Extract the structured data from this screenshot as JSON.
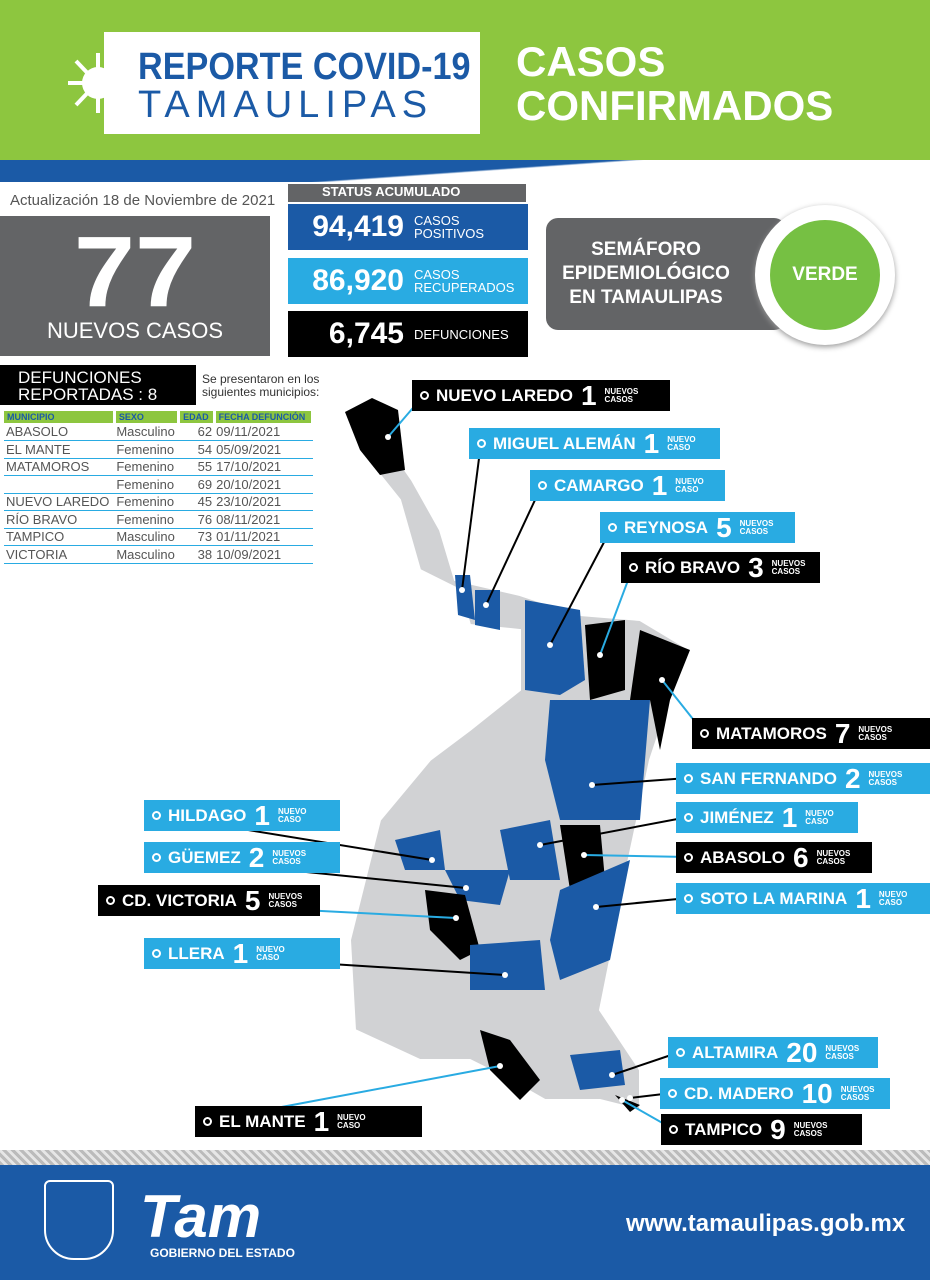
{
  "header": {
    "title_line1": "REPORTE COVID-19",
    "title_line2": "TAMAULIPAS",
    "section_line1": "CASOS",
    "section_line2": "CONFIRMADOS"
  },
  "update": "Actualización 18 de Noviembre de 2021",
  "new_cases": {
    "value": "77",
    "label": "NUEVOS CASOS"
  },
  "status": {
    "title": "STATUS ACUMULADO",
    "items": [
      {
        "value": "94,419",
        "label1": "CASOS",
        "label2": "POSITIVOS",
        "color": "#1b5aa6"
      },
      {
        "value": "86,920",
        "label1": "CASOS",
        "label2": "RECUPERADOS",
        "color": "#29abe2"
      },
      {
        "value": "6,745",
        "label1": "DEFUNCIONES",
        "label2": "",
        "color": "#000000"
      }
    ]
  },
  "semaforo": {
    "line1": "SEMÁFORO",
    "line2": "EPIDEMIOLÓGICO",
    "line3": "EN TAMAULIPAS",
    "value": "VERDE",
    "color": "#76c043"
  },
  "deaths": {
    "title1": "DEFUNCIONES",
    "title2": "REPORTADAS : 8",
    "note1": "Se presentaron en los",
    "note2": "siguientes municipios:",
    "columns": [
      "MUNICIPIO",
      "SEXO",
      "EDAD",
      "FECHA DEFUNCIÓN"
    ],
    "rows": [
      [
        "ABASOLO",
        "Masculino",
        "62",
        "09/11/2021"
      ],
      [
        "EL MANTE",
        "Femenino",
        "54",
        "05/09/2021"
      ],
      [
        "MATAMOROS",
        "Femenino",
        "55",
        "17/10/2021"
      ],
      [
        "",
        "Femenino",
        "69",
        "20/10/2021"
      ],
      [
        "NUEVO LAREDO",
        "Femenino",
        "45",
        "23/10/2021"
      ],
      [
        "RÍO BRAVO",
        "Femenino",
        "76",
        "08/11/2021"
      ],
      [
        "TAMPICO",
        "Masculino",
        "73",
        "01/11/2021"
      ],
      [
        "VICTORIA",
        "Masculino",
        "38",
        "10/09/2021"
      ]
    ]
  },
  "municipalities": [
    {
      "name": "NUEVO LAREDO",
      "count": "1",
      "suffix1": "NUEVOS",
      "suffix2": "CASOS",
      "style": "black"
    },
    {
      "name": "MIGUEL ALEMÁN",
      "count": "1",
      "suffix1": "NUEVO",
      "suffix2": "CASO",
      "style": "cyan"
    },
    {
      "name": "CAMARGO",
      "count": "1",
      "suffix1": "NUEVO",
      "suffix2": "CASO",
      "style": "cyan"
    },
    {
      "name": "REYNOSA",
      "count": "5",
      "suffix1": "NUEVOS",
      "suffix2": "CASOS",
      "style": "cyan"
    },
    {
      "name": "RÍO BRAVO",
      "count": "3",
      "suffix1": "NUEVOS",
      "suffix2": "CASOS",
      "style": "black"
    },
    {
      "name": "MATAMOROS",
      "count": "7",
      "suffix1": "NUEVOS",
      "suffix2": "CASOS",
      "style": "black"
    },
    {
      "name": "SAN FERNANDO",
      "count": "2",
      "suffix1": "NUEVOS",
      "suffix2": "CASOS",
      "style": "cyan"
    },
    {
      "name": "JIMÉNEZ",
      "count": "1",
      "suffix1": "NUEVO",
      "suffix2": "CASO",
      "style": "cyan"
    },
    {
      "name": "ABASOLO",
      "count": "6",
      "suffix1": "NUEVOS",
      "suffix2": "CASOS",
      "style": "black"
    },
    {
      "name": "SOTO LA MARINA",
      "count": "1",
      "suffix1": "NUEVO",
      "suffix2": "CASO",
      "style": "cyan"
    },
    {
      "name": "HILDAGO",
      "count": "1",
      "suffix1": "NUEVO",
      "suffix2": "CASO",
      "style": "cyan"
    },
    {
      "name": "GÜEMEZ",
      "count": "2",
      "suffix1": "NUEVOS",
      "suffix2": "CASOS",
      "style": "cyan"
    },
    {
      "name": "CD. VICTORIA",
      "count": "5",
      "suffix1": "NUEVOS",
      "suffix2": "CASOS",
      "style": "black"
    },
    {
      "name": "LLERA",
      "count": "1",
      "suffix1": "NUEVO",
      "suffix2": "CASO",
      "style": "cyan"
    },
    {
      "name": "ALTAMIRA",
      "count": "20",
      "suffix1": "NUEVOS",
      "suffix2": "CASOS",
      "style": "cyan"
    },
    {
      "name": "CD. MADERO",
      "count": "10",
      "suffix1": "NUEVOS",
      "suffix2": "CASOS",
      "style": "cyan"
    },
    {
      "name": "TAMPICO",
      "count": "9",
      "suffix1": "NUEVOS",
      "suffix2": "CASOS",
      "style": "black"
    },
    {
      "name": "EL MANTE",
      "count": "1",
      "suffix1": "NUEVO",
      "suffix2": "CASO",
      "style": "black"
    }
  ],
  "footer": {
    "logo_text": "Tam",
    "logo_sub": "GOBIERNO DEL ESTADO",
    "url": "www.tamaulipas.gob.mx"
  },
  "colors": {
    "green": "#8dc63f",
    "blue": "#1b5aa6",
    "cyan": "#29abe2",
    "gray": "#636466",
    "map_gray": "#d1d2d4"
  }
}
